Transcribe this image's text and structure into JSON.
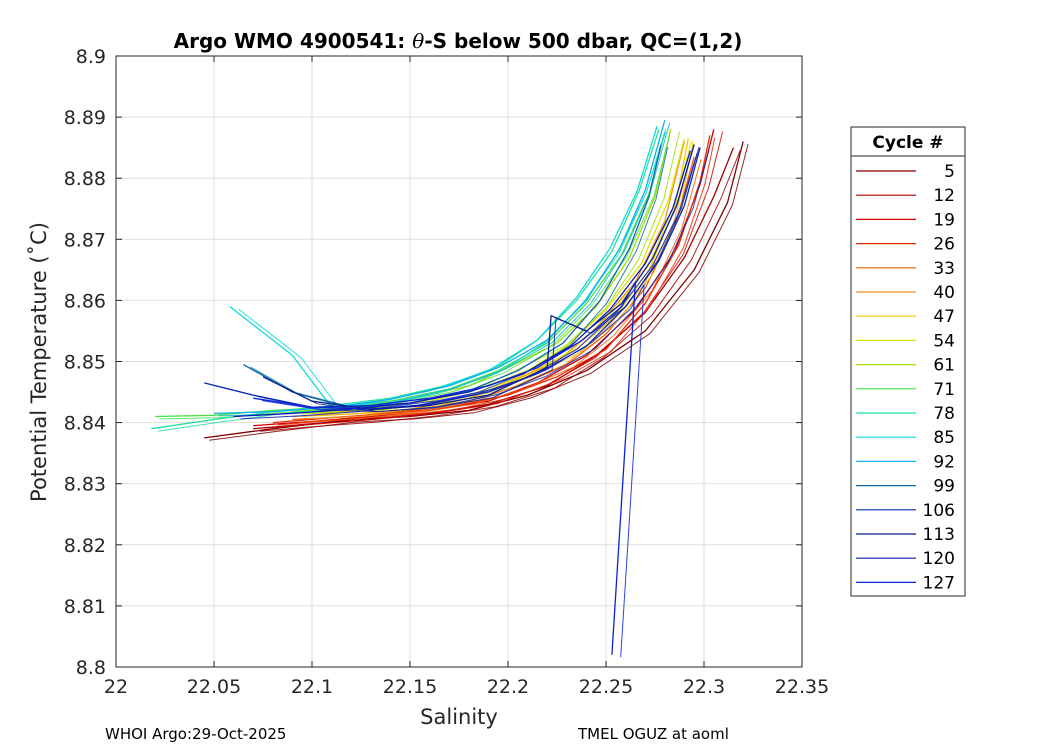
{
  "chart_data": {
    "type": "line",
    "title_parts": [
      "Argo WMO 4900541: ",
      "θ",
      "-S below 500 dbar,  QC=(1,2)"
    ],
    "xlabel": "Salinity",
    "ylabel": "Potential Temperature (˚C)",
    "xlim": [
      22.0,
      22.35
    ],
    "ylim": [
      8.8,
      8.9
    ],
    "xticks": [
      "22",
      "22.05",
      "22.1",
      "22.15",
      "22.2",
      "22.25",
      "22.3",
      "22.35"
    ],
    "yticks": [
      "8.8",
      "8.81",
      "8.82",
      "8.83",
      "8.84",
      "8.85",
      "8.86",
      "8.87",
      "8.88",
      "8.89",
      "8.9"
    ],
    "grid": true,
    "legend": {
      "title": "Cycle #",
      "placement": "outside-right",
      "entries": [
        {
          "label": "5",
          "color": "#800000"
        },
        {
          "label": "12",
          "color": "#a00000"
        },
        {
          "label": "19",
          "color": "#d40000"
        },
        {
          "label": "26",
          "color": "#e82a00"
        },
        {
          "label": "33",
          "color": "#f25a00"
        },
        {
          "label": "40",
          "color": "#f4921e"
        },
        {
          "label": "47",
          "color": "#f5c800"
        },
        {
          "label": "54",
          "color": "#dde400"
        },
        {
          "label": "61",
          "color": "#9ee000"
        },
        {
          "label": "71",
          "color": "#46e046"
        },
        {
          "label": "78",
          "color": "#1fe3a0"
        },
        {
          "label": "85",
          "color": "#12d8d8"
        },
        {
          "label": "92",
          "color": "#0fb0e8"
        },
        {
          "label": "99",
          "color": "#0a6aa8"
        },
        {
          "label": "106",
          "color": "#0a2db4"
        },
        {
          "label": "113",
          "color": "#0a1f8c"
        },
        {
          "label": "120",
          "color": "#0a1ab4"
        },
        {
          "label": "127",
          "color": "#0a24d8"
        }
      ]
    },
    "series": [
      {
        "label": "5",
        "color": "#800000",
        "x": [
          22.045,
          22.08,
          22.12,
          22.15,
          22.18,
          22.21,
          22.24,
          22.27,
          22.295,
          22.312,
          22.32
        ],
        "y": [
          8.8375,
          8.839,
          8.8405,
          8.841,
          8.842,
          8.8445,
          8.8485,
          8.855,
          8.865,
          8.876,
          8.886
        ]
      },
      {
        "label": "12",
        "color": "#a00000",
        "x": [
          22.07,
          22.1,
          22.13,
          22.16,
          22.19,
          22.22,
          22.245,
          22.27,
          22.29,
          22.305,
          22.315
        ],
        "y": [
          8.839,
          8.8398,
          8.8405,
          8.8415,
          8.843,
          8.846,
          8.851,
          8.858,
          8.867,
          8.877,
          8.885
        ]
      },
      {
        "label": "19",
        "color": "#d40000",
        "x": [
          22.07,
          22.1,
          22.13,
          22.16,
          22.19,
          22.215,
          22.24,
          22.265,
          22.285,
          22.298,
          22.305
        ],
        "y": [
          8.8395,
          8.8402,
          8.841,
          8.842,
          8.8435,
          8.8465,
          8.851,
          8.8585,
          8.868,
          8.879,
          8.888
        ]
      },
      {
        "label": "26",
        "color": "#e82a00",
        "x": [
          22.08,
          22.11,
          22.14,
          22.17,
          22.2,
          22.225,
          22.25,
          22.27,
          22.287,
          22.298,
          22.303
        ],
        "y": [
          8.84,
          8.8408,
          8.8415,
          8.8425,
          8.8445,
          8.8475,
          8.852,
          8.8595,
          8.869,
          8.8795,
          8.887
        ]
      },
      {
        "label": "33",
        "color": "#f25a00",
        "x": [
          22.09,
          22.12,
          22.15,
          22.18,
          22.205,
          22.23,
          22.25,
          22.27,
          22.285,
          22.295
        ],
        "y": [
          8.8405,
          8.841,
          8.842,
          8.8435,
          8.846,
          8.8495,
          8.8545,
          8.862,
          8.872,
          8.8835
        ]
      },
      {
        "label": "40",
        "color": "#f4921e",
        "x": [
          22.09,
          22.12,
          22.15,
          22.18,
          22.2,
          22.225,
          22.245,
          22.265,
          22.28,
          22.29
        ],
        "y": [
          8.841,
          8.8414,
          8.8422,
          8.844,
          8.8465,
          8.85,
          8.8555,
          8.863,
          8.873,
          8.886
        ]
      },
      {
        "label": "47",
        "color": "#f5c800",
        "x": [
          22.1,
          22.13,
          22.16,
          22.185,
          22.21,
          22.235,
          22.255,
          22.272,
          22.285,
          22.292
        ],
        "y": [
          8.8415,
          8.842,
          8.843,
          8.845,
          8.848,
          8.852,
          8.8575,
          8.865,
          8.875,
          8.8865
        ]
      },
      {
        "label": "54",
        "color": "#dde400",
        "x": [
          22.1,
          22.13,
          22.16,
          22.185,
          22.21,
          22.23,
          22.25,
          22.268,
          22.282,
          22.29
        ],
        "y": [
          8.8418,
          8.8424,
          8.8435,
          8.8455,
          8.8485,
          8.8525,
          8.8585,
          8.866,
          8.8765,
          8.8865
        ]
      },
      {
        "label": "61",
        "color": "#9ee000",
        "x": [
          22.09,
          22.12,
          22.15,
          22.18,
          22.2,
          22.225,
          22.245,
          22.262,
          22.275,
          22.283
        ],
        "y": [
          8.8418,
          8.8425,
          8.8438,
          8.846,
          8.849,
          8.853,
          8.859,
          8.867,
          8.877,
          8.888
        ]
      },
      {
        "label": "71",
        "color": "#46e046",
        "x": [
          22.02,
          22.05,
          22.08,
          22.11,
          22.14,
          22.17,
          22.195,
          22.22,
          22.24,
          22.258,
          22.272,
          22.28
        ],
        "y": [
          8.841,
          8.8412,
          8.842,
          8.8425,
          8.8435,
          8.8455,
          8.8485,
          8.853,
          8.8595,
          8.8675,
          8.8775,
          8.8875
        ]
      },
      {
        "label": "78",
        "color": "#1fe3a0",
        "x": [
          22.018,
          22.05,
          22.08,
          22.11,
          22.14,
          22.17,
          22.195,
          22.215,
          22.235,
          22.253,
          22.267,
          22.277
        ],
        "y": [
          8.839,
          8.8405,
          8.8418,
          8.8428,
          8.844,
          8.8462,
          8.8492,
          8.8535,
          8.86,
          8.868,
          8.878,
          8.888
        ]
      },
      {
        "label": "85",
        "color": "#12d8d8",
        "x": [
          22.058,
          22.09,
          22.11,
          22.13,
          22.16,
          22.19,
          22.215,
          22.235,
          22.252,
          22.266,
          22.276
        ],
        "y": [
          8.859,
          8.851,
          8.8425,
          8.8432,
          8.8452,
          8.8485,
          8.8535,
          8.8605,
          8.8685,
          8.878,
          8.8885
        ]
      },
      {
        "label": "92",
        "color": "#0fb0e8",
        "x": [
          22.05,
          22.08,
          22.11,
          22.14,
          22.17,
          22.195,
          22.22,
          22.24,
          22.257,
          22.27,
          22.28
        ],
        "y": [
          8.8415,
          8.8418,
          8.8425,
          8.8438,
          8.846,
          8.849,
          8.8535,
          8.86,
          8.8685,
          8.878,
          8.8895
        ]
      },
      {
        "label": "99",
        "color": "#0a6aa8",
        "x": [
          22.065,
          22.09,
          22.12,
          22.15,
          22.18,
          22.205,
          22.228,
          22.247,
          22.262,
          22.272,
          22.278
        ],
        "y": [
          8.8495,
          8.845,
          8.8425,
          8.8432,
          8.8452,
          8.8485,
          8.853,
          8.86,
          8.8685,
          8.877,
          8.8855
        ]
      },
      {
        "label": "106",
        "color": "#0a2db4",
        "x": [
          22.045,
          22.07,
          22.1,
          22.13,
          22.16,
          22.19,
          22.215,
          22.24,
          22.26,
          22.277,
          22.29,
          22.298
        ],
        "y": [
          8.8465,
          8.8445,
          8.8425,
          8.8422,
          8.843,
          8.845,
          8.848,
          8.8525,
          8.859,
          8.8665,
          8.8755,
          8.885
        ]
      },
      {
        "label": "113",
        "color": "#0a1f8c",
        "x": [
          22.075,
          22.1,
          22.13,
          22.16,
          22.19,
          22.22,
          22.222,
          22.24,
          22.258,
          22.274,
          22.286,
          22.295
        ],
        "y": [
          8.8475,
          8.8435,
          8.8422,
          8.8428,
          8.8445,
          8.849,
          8.8575,
          8.855,
          8.8595,
          8.867,
          8.8755,
          8.8855
        ]
      },
      {
        "label": "120",
        "color": "#0a1ab4",
        "x": [
          22.06,
          22.09,
          22.12,
          22.15,
          22.18,
          22.208,
          22.232,
          22.252,
          22.27,
          22.284,
          22.293
        ],
        "y": [
          8.841,
          8.8415,
          8.8422,
          8.8432,
          8.845,
          8.848,
          8.8525,
          8.8585,
          8.866,
          8.875,
          8.8845
        ]
      },
      {
        "label": "127",
        "color": "#0a24d8",
        "x": [
          22.07,
          22.1,
          22.13,
          22.16,
          22.19,
          22.215,
          22.238,
          22.258,
          22.265,
          22.253
        ],
        "y": [
          8.844,
          8.8425,
          8.8428,
          8.844,
          8.846,
          8.849,
          8.8535,
          8.859,
          8.863,
          8.802
        ]
      }
    ]
  },
  "footer": {
    "left": "WHOI Argo:29-Oct-2025",
    "right": "TMEL OGUZ at aoml"
  }
}
